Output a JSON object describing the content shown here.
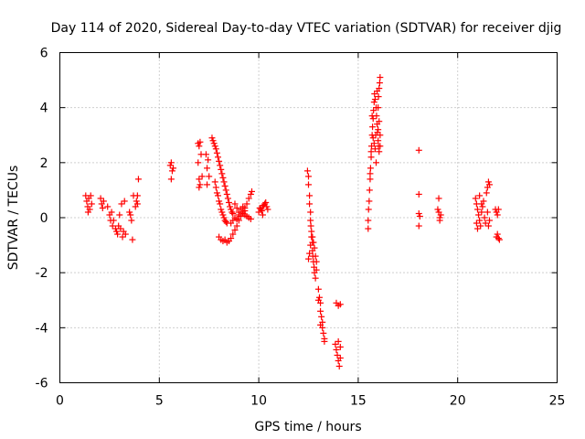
{
  "chart_data": {
    "type": "scatter",
    "title": "Day 114 of 2020, Sidereal Day-to-day VTEC variation (SDTVAR) for receiver djig",
    "xlabel": "GPS time / hours",
    "ylabel": "SDTVAR / TECUs",
    "xlim": [
      0,
      25
    ],
    "ylim": [
      -6,
      6
    ],
    "xticks": [
      0,
      5,
      10,
      15,
      20,
      25
    ],
    "yticks": [
      -6,
      -4,
      -2,
      0,
      2,
      4,
      6
    ],
    "xtick_labels": [
      "0",
      "5",
      "10",
      "15",
      "20",
      "25"
    ],
    "ytick_labels": [
      "-6",
      "-4",
      "-2",
      "0",
      "2",
      "4",
      "6"
    ],
    "grid": true,
    "marker": "+",
    "color": "#ff0000",
    "series": [
      {
        "name": "SDTVAR",
        "points": [
          [
            1.3,
            0.8
          ],
          [
            1.35,
            0.6
          ],
          [
            1.4,
            0.4
          ],
          [
            1.42,
            0.2
          ],
          [
            1.45,
            0.7
          ],
          [
            1.5,
            0.3
          ],
          [
            1.55,
            0.8
          ],
          [
            1.6,
            0.5
          ],
          [
            2.05,
            0.7
          ],
          [
            2.1,
            0.5
          ],
          [
            2.15,
            0.35
          ],
          [
            2.2,
            0.6
          ],
          [
            2.4,
            0.4
          ],
          [
            2.5,
            0.1
          ],
          [
            2.55,
            -0.1
          ],
          [
            2.6,
            0.2
          ],
          [
            2.65,
            -0.3
          ],
          [
            2.7,
            -0.1
          ],
          [
            2.8,
            -0.4
          ],
          [
            2.85,
            -0.5
          ],
          [
            2.9,
            -0.6
          ],
          [
            2.95,
            -0.3
          ],
          [
            3.0,
            0.1
          ],
          [
            3.05,
            -0.4
          ],
          [
            3.1,
            0.5
          ],
          [
            3.15,
            -0.7
          ],
          [
            3.2,
            -0.5
          ],
          [
            3.25,
            0.6
          ],
          [
            3.3,
            -0.6
          ],
          [
            3.5,
            0.2
          ],
          [
            3.55,
            0.1
          ],
          [
            3.6,
            -0.1
          ],
          [
            3.65,
            -0.8
          ],
          [
            3.7,
            0.8
          ],
          [
            3.8,
            0.4
          ],
          [
            3.85,
            0.6
          ],
          [
            3.9,
            0.8
          ],
          [
            3.95,
            1.4
          ],
          [
            3.9,
            0.5
          ],
          [
            5.55,
            1.9
          ],
          [
            5.6,
            2.0
          ],
          [
            5.65,
            1.7
          ],
          [
            5.6,
            1.4
          ],
          [
            5.7,
            1.8
          ],
          [
            6.95,
            2.7
          ],
          [
            7.0,
            2.6
          ],
          [
            7.05,
            2.75
          ],
          [
            6.95,
            2.0
          ],
          [
            7.0,
            1.4
          ],
          [
            7.0,
            1.1
          ],
          [
            7.05,
            1.2
          ],
          [
            7.1,
            2.3
          ],
          [
            7.15,
            1.5
          ],
          [
            7.35,
            2.3
          ],
          [
            7.4,
            1.8
          ],
          [
            7.45,
            2.1
          ],
          [
            7.4,
            1.2
          ],
          [
            7.5,
            1.5
          ],
          [
            7.65,
            2.9
          ],
          [
            7.7,
            2.8
          ],
          [
            7.75,
            2.7
          ],
          [
            7.8,
            2.6
          ],
          [
            7.85,
            2.5
          ],
          [
            7.9,
            2.35
          ],
          [
            7.95,
            2.2
          ],
          [
            8.0,
            2.05
          ],
          [
            8.05,
            1.9
          ],
          [
            8.1,
            1.75
          ],
          [
            8.15,
            1.6
          ],
          [
            8.2,
            1.45
          ],
          [
            8.25,
            1.3
          ],
          [
            8.3,
            1.15
          ],
          [
            8.35,
            1.0
          ],
          [
            8.4,
            0.85
          ],
          [
            8.45,
            0.7
          ],
          [
            8.5,
            0.55
          ],
          [
            8.55,
            0.4
          ],
          [
            8.6,
            0.3
          ],
          [
            8.65,
            0.2
          ],
          [
            8.7,
            0.15
          ],
          [
            7.8,
            1.3
          ],
          [
            7.85,
            1.1
          ],
          [
            7.9,
            0.9
          ],
          [
            7.95,
            0.8
          ],
          [
            8.0,
            0.6
          ],
          [
            8.05,
            0.5
          ],
          [
            8.1,
            0.3
          ],
          [
            8.15,
            0.2
          ],
          [
            8.2,
            0.1
          ],
          [
            8.25,
            0.0
          ],
          [
            8.3,
            -0.1
          ],
          [
            8.35,
            -0.15
          ],
          [
            8.4,
            -0.2
          ],
          [
            8.0,
            -0.7
          ],
          [
            8.1,
            -0.8
          ],
          [
            8.2,
            -0.85
          ],
          [
            8.3,
            -0.8
          ],
          [
            8.4,
            -0.9
          ],
          [
            8.5,
            -0.85
          ],
          [
            8.6,
            -0.75
          ],
          [
            8.7,
            -0.6
          ],
          [
            8.8,
            -0.45
          ],
          [
            8.9,
            -0.3
          ],
          [
            9.0,
            -0.1
          ],
          [
            9.1,
            0.05
          ],
          [
            9.2,
            0.2
          ],
          [
            9.3,
            0.35
          ],
          [
            9.4,
            0.5
          ],
          [
            9.5,
            0.7
          ],
          [
            9.6,
            0.85
          ],
          [
            9.65,
            0.95
          ],
          [
            8.6,
            -0.2
          ],
          [
            8.7,
            -0.1
          ],
          [
            8.8,
            0.0
          ],
          [
            8.9,
            -0.05
          ],
          [
            9.0,
            0.1
          ],
          [
            9.1,
            0.2
          ],
          [
            9.2,
            0.15
          ],
          [
            9.3,
            0.1
          ],
          [
            9.4,
            0.05
          ],
          [
            9.5,
            0.0
          ],
          [
            9.6,
            -0.05
          ],
          [
            8.8,
            0.5
          ],
          [
            8.9,
            0.35
          ],
          [
            9.0,
            0.2
          ],
          [
            9.1,
            0.3
          ],
          [
            9.2,
            0.4
          ],
          [
            9.3,
            0.25
          ],
          [
            10.0,
            0.2
          ],
          [
            10.05,
            0.35
          ],
          [
            10.1,
            0.3
          ],
          [
            10.15,
            0.25
          ],
          [
            10.2,
            0.4
          ],
          [
            10.25,
            0.45
          ],
          [
            10.3,
            0.5
          ],
          [
            10.35,
            0.55
          ],
          [
            10.4,
            0.4
          ],
          [
            10.45,
            0.3
          ],
          [
            10.2,
            0.1
          ],
          [
            12.45,
            1.7
          ],
          [
            12.5,
            1.5
          ],
          [
            12.5,
            1.2
          ],
          [
            12.55,
            0.8
          ],
          [
            12.55,
            0.5
          ],
          [
            12.6,
            0.2
          ],
          [
            12.6,
            -0.1
          ],
          [
            12.62,
            -0.3
          ],
          [
            12.65,
            -0.5
          ],
          [
            12.65,
            -0.7
          ],
          [
            12.7,
            -0.9
          ],
          [
            12.7,
            -1.2
          ],
          [
            12.72,
            -1.4
          ],
          [
            12.75,
            -1.6
          ],
          [
            12.78,
            -1.8
          ],
          [
            12.8,
            -2.0
          ],
          [
            12.85,
            -2.2
          ],
          [
            12.9,
            -1.9
          ],
          [
            12.9,
            -1.6
          ],
          [
            12.85,
            -1.4
          ],
          [
            12.8,
            -1.1
          ],
          [
            12.75,
            -0.9
          ],
          [
            12.7,
            -0.7
          ],
          [
            12.6,
            -1.0
          ],
          [
            12.55,
            -1.3
          ],
          [
            12.5,
            -1.5
          ],
          [
            13.0,
            -2.6
          ],
          [
            13.05,
            -2.9
          ],
          [
            13.1,
            -3.1
          ],
          [
            13.1,
            -3.4
          ],
          [
            13.15,
            -3.6
          ],
          [
            13.2,
            -3.8
          ],
          [
            13.2,
            -4.0
          ],
          [
            13.25,
            -4.2
          ],
          [
            13.3,
            -4.4
          ],
          [
            13.3,
            -4.5
          ],
          [
            13.0,
            -3.0
          ],
          [
            13.1,
            -3.9
          ],
          [
            13.85,
            -4.6
          ],
          [
            13.9,
            -4.8
          ],
          [
            13.95,
            -5.0
          ],
          [
            14.0,
            -5.2
          ],
          [
            14.05,
            -5.4
          ],
          [
            14.1,
            -5.1
          ],
          [
            14.1,
            -4.7
          ],
          [
            14.0,
            -4.5
          ],
          [
            13.9,
            -3.1
          ],
          [
            14.0,
            -3.2
          ],
          [
            14.1,
            -3.15
          ],
          [
            15.5,
            -0.4
          ],
          [
            15.5,
            -0.1
          ],
          [
            15.52,
            0.3
          ],
          [
            15.55,
            0.6
          ],
          [
            15.57,
            1.0
          ],
          [
            15.6,
            1.4
          ],
          [
            15.62,
            1.8
          ],
          [
            15.65,
            2.2
          ],
          [
            15.67,
            2.6
          ],
          [
            15.7,
            3.0
          ],
          [
            15.72,
            3.3
          ],
          [
            15.75,
            3.6
          ],
          [
            15.77,
            3.9
          ],
          [
            15.8,
            4.2
          ],
          [
            15.82,
            4.5
          ],
          [
            15.85,
            4.3
          ],
          [
            15.9,
            4.0
          ],
          [
            15.92,
            3.7
          ],
          [
            15.95,
            3.4
          ],
          [
            15.97,
            3.1
          ],
          [
            16.0,
            2.8
          ],
          [
            16.02,
            2.6
          ],
          [
            16.05,
            2.4
          ],
          [
            16.1,
            2.6
          ],
          [
            16.1,
            3.0
          ],
          [
            16.05,
            3.5
          ],
          [
            16.0,
            4.0
          ],
          [
            16.02,
            4.4
          ],
          [
            16.05,
            4.7
          ],
          [
            16.08,
            4.9
          ],
          [
            16.1,
            5.1
          ],
          [
            15.6,
            1.6
          ],
          [
            15.65,
            2.4
          ],
          [
            15.75,
            2.9
          ],
          [
            15.85,
            2.5
          ],
          [
            15.9,
            2.0
          ],
          [
            16.0,
            3.2
          ],
          [
            15.7,
            3.7
          ],
          [
            15.8,
            2.7
          ],
          [
            15.95,
            4.6
          ],
          [
            15.88,
            3.0
          ],
          [
            18.05,
            2.45
          ],
          [
            18.05,
            0.85
          ],
          [
            18.05,
            0.15
          ],
          [
            18.05,
            -0.3
          ],
          [
            18.1,
            0.05
          ],
          [
            19.0,
            0.3
          ],
          [
            19.05,
            0.2
          ],
          [
            19.1,
            0.0
          ],
          [
            19.1,
            -0.1
          ],
          [
            19.05,
            0.7
          ],
          [
            19.15,
            0.1
          ],
          [
            20.9,
            0.7
          ],
          [
            20.95,
            0.5
          ],
          [
            21.0,
            0.3
          ],
          [
            21.05,
            0.1
          ],
          [
            21.1,
            -0.1
          ],
          [
            21.15,
            -0.3
          ],
          [
            21.2,
            0.2
          ],
          [
            21.25,
            0.4
          ],
          [
            21.3,
            0.6
          ],
          [
            20.95,
            -0.2
          ],
          [
            21.0,
            -0.4
          ],
          [
            21.1,
            0.8
          ],
          [
            21.2,
            0.5
          ],
          [
            21.35,
            0.0
          ],
          [
            21.4,
            -0.2
          ],
          [
            21.45,
            0.9
          ],
          [
            21.5,
            1.1
          ],
          [
            21.55,
            1.3
          ],
          [
            21.6,
            1.2
          ],
          [
            21.5,
            0.2
          ],
          [
            21.55,
            -0.3
          ],
          [
            21.6,
            -0.1
          ],
          [
            21.9,
            0.3
          ],
          [
            21.95,
            0.2
          ],
          [
            22.0,
            -0.6
          ],
          [
            22.05,
            -0.75
          ],
          [
            22.1,
            -0.8
          ],
          [
            22.0,
            0.1
          ],
          [
            22.05,
            0.3
          ],
          [
            21.95,
            -0.7
          ]
        ]
      }
    ]
  }
}
